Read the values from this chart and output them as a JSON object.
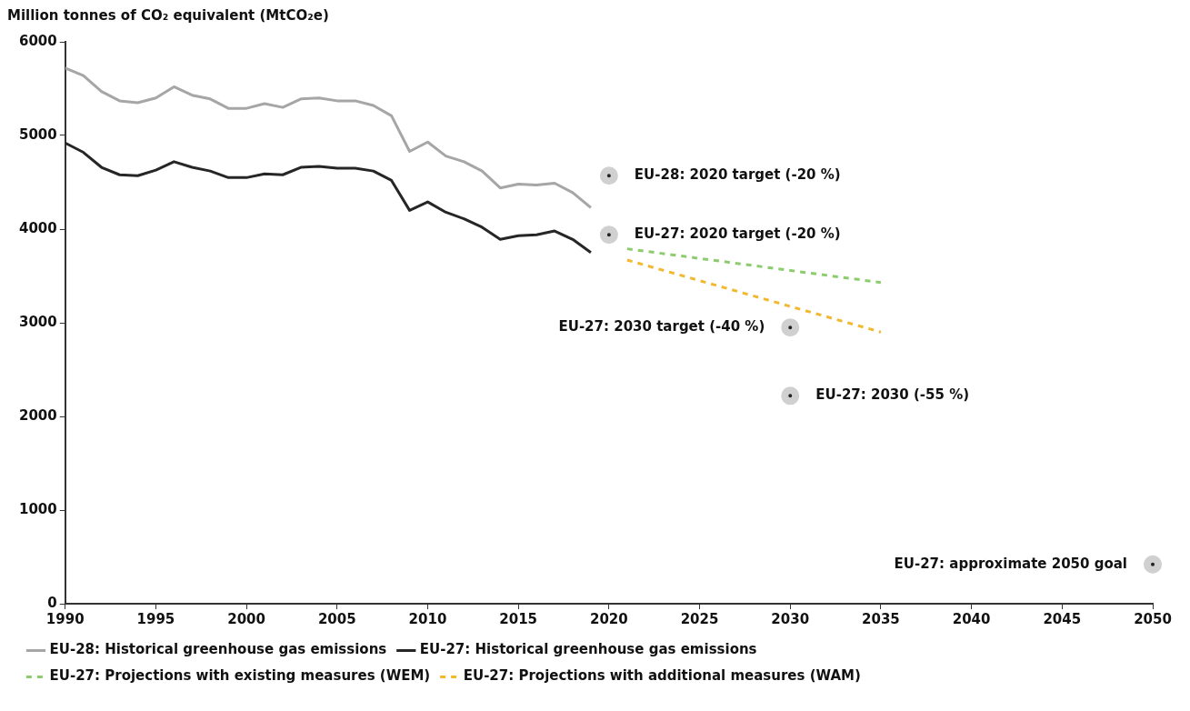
{
  "chart_data": {
    "type": "line",
    "ylabel": "Million tonnes of CO₂ equivalent (MtCO₂e)",
    "xlim": [
      1990,
      2050
    ],
    "xticks": [
      1990,
      1995,
      2000,
      2005,
      2010,
      2015,
      2020,
      2025,
      2030,
      2035,
      2040,
      2045,
      2050
    ],
    "ylim": [
      0,
      6000
    ],
    "yticks": [
      0,
      1000,
      2000,
      3000,
      4000,
      5000,
      6000
    ],
    "grid": false,
    "legend": "bottom",
    "marker": "none",
    "series": [
      {
        "name": "EU-28: Historical greenhouse gas emissions",
        "color": "#a6a6a6",
        "line_style": "solid",
        "x": [
          1990,
          1991,
          1992,
          1993,
          1994,
          1995,
          1996,
          1997,
          1998,
          1999,
          2000,
          2001,
          2002,
          2003,
          2004,
          2005,
          2006,
          2007,
          2008,
          2009,
          2010,
          2011,
          2012,
          2013,
          2014,
          2015,
          2016,
          2017,
          2018,
          2019
        ],
        "values": [
          5720,
          5640,
          5470,
          5370,
          5350,
          5400,
          5520,
          5430,
          5390,
          5290,
          5290,
          5340,
          5300,
          5390,
          5400,
          5370,
          5370,
          5320,
          5210,
          4830,
          4930,
          4780,
          4720,
          4620,
          4440,
          4480,
          4470,
          4490,
          4390,
          4230
        ]
      },
      {
        "name": "EU-27: Historical greenhouse gas emissions",
        "color": "#262626",
        "line_style": "solid",
        "x": [
          1990,
          1991,
          1992,
          1993,
          1994,
          1995,
          1996,
          1997,
          1998,
          1999,
          2000,
          2001,
          2002,
          2003,
          2004,
          2005,
          2006,
          2007,
          2008,
          2009,
          2010,
          2011,
          2012,
          2013,
          2014,
          2015,
          2016,
          2017,
          2018,
          2019
        ],
        "values": [
          4920,
          4820,
          4660,
          4580,
          4570,
          4630,
          4720,
          4660,
          4620,
          4550,
          4550,
          4590,
          4580,
          4660,
          4670,
          4650,
          4650,
          4620,
          4520,
          4200,
          4290,
          4180,
          4110,
          4020,
          3890,
          3930,
          3940,
          3980,
          3890,
          3750
        ]
      },
      {
        "name": "EU-27: Projections with existing measures (WEM)",
        "color": "#8ccc6e",
        "line_style": "dashed",
        "x": [
          2021,
          2035
        ],
        "values": [
          3790,
          3430
        ]
      },
      {
        "name": "EU-27: Projections with additional measures (WAM)",
        "color": "#f2b830",
        "line_style": "dashed",
        "x": [
          2021,
          2035
        ],
        "values": [
          3670,
          2900
        ]
      },
      {
        "type": "scatter",
        "color": "#222222",
        "marker": "circle",
        "x": [
          2020,
          2020,
          2030,
          2030,
          2050
        ],
        "values": [
          4570,
          3940,
          2950,
          2220,
          420
        ]
      }
    ],
    "annotations": [
      {
        "text": "EU-28: 2020 target (-20 %)",
        "x": 2020,
        "y": 4570
      },
      {
        "text": "EU-27: 2020 target (-20 %)",
        "x": 2020,
        "y": 3940
      },
      {
        "text": "EU-27: 2030 target (-40 %)",
        "x": 2030,
        "y": 2950
      },
      {
        "text": "EU-27: 2030 (-55 %)",
        "x": 2030,
        "y": 2220
      },
      {
        "text": "EU-27: approximate 2050 goal",
        "x": 2050,
        "y": 420
      }
    ]
  }
}
